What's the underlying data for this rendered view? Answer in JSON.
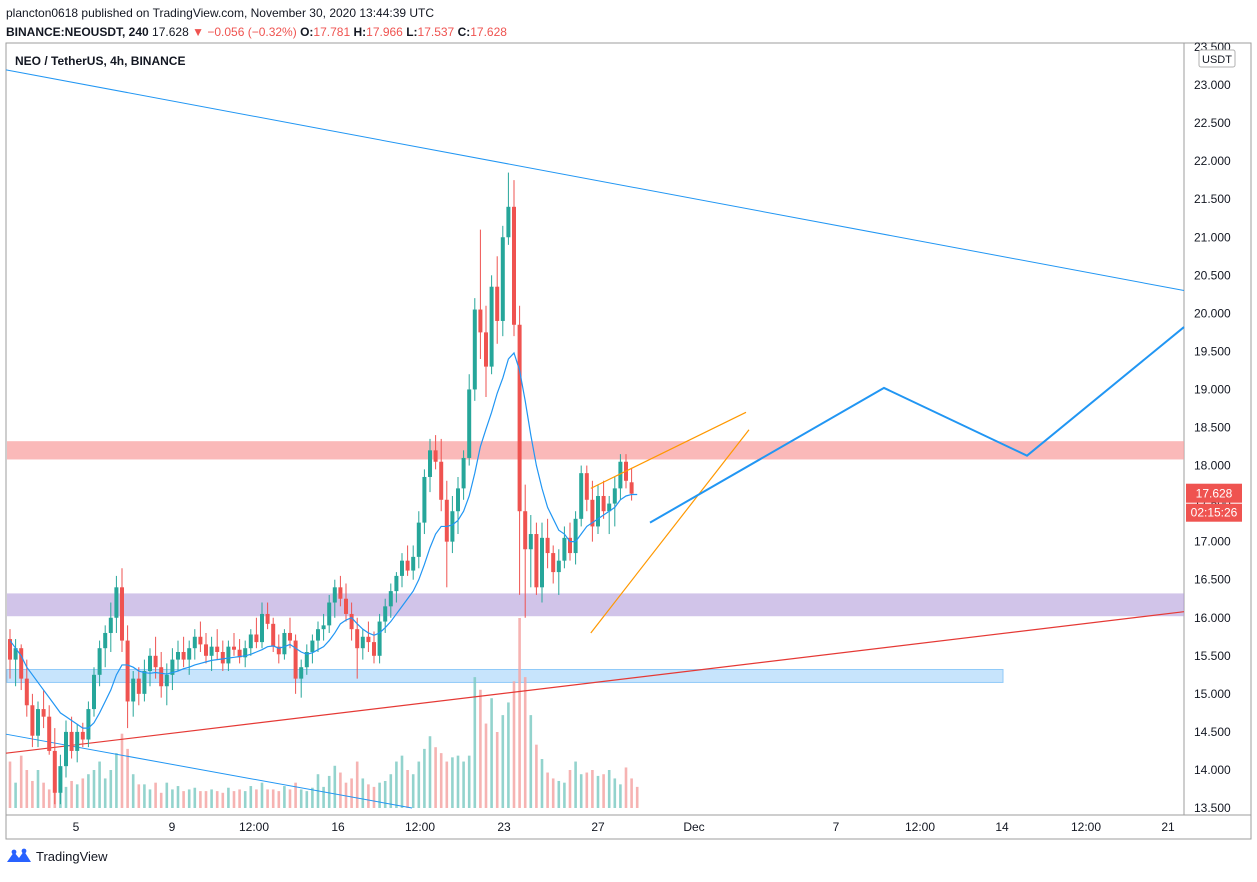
{
  "header": {
    "published": "plancton0618 published on TradingView.com, November 30, 2020 13:44:39 UTC",
    "symbol": "BINANCE:NEOUSDT, 240",
    "last": "17.628",
    "change_arrow": "▼",
    "change": "−0.056 (−0.32%)",
    "o_label": "O:",
    "o_value": "17.781",
    "h_label": "H:",
    "h_value": "17.966",
    "l_label": "L:",
    "l_value": "17.537",
    "c_label": "C:",
    "c_value": "17.628"
  },
  "footer": {
    "brand": "TradingView",
    "logo_icon": "tradingview-logo-icon"
  },
  "chart_data": {
    "type": "candlestick",
    "title": "NEO / TetherUS, 4h, BINANCE",
    "currency": "USDT",
    "ylim": [
      13.5,
      23.5
    ],
    "y_ticks": [
      "23.500",
      "23.000",
      "22.500",
      "22.000",
      "21.500",
      "21.000",
      "20.500",
      "20.000",
      "19.500",
      "19.000",
      "18.500",
      "18.000",
      "17.500",
      "17.000",
      "16.500",
      "16.000",
      "15.500",
      "15.000",
      "14.500",
      "14.000",
      "13.500"
    ],
    "x_ticks": [
      "5",
      "9",
      "12:00",
      "16",
      "12:00",
      "23",
      "27",
      "Dec",
      "7",
      "12:00",
      "14",
      "12:00",
      "21"
    ],
    "last_price": "17.628",
    "countdown": "02:15:26",
    "colors": {
      "up": "#26a69a",
      "down": "#ef5350",
      "ma": "#2196f3",
      "projection": "#2196f3",
      "wedge": "#ff9800",
      "red_line": "#e53935"
    },
    "zones": [
      {
        "name": "resistance-zone",
        "low": 18.08,
        "high": 18.32,
        "color": "#f8a1a1",
        "opacity": 0.75,
        "end": "right"
      },
      {
        "name": "support-zone",
        "low": 16.02,
        "high": 16.32,
        "color": "#b39ddb",
        "opacity": 0.6,
        "end": "right"
      },
      {
        "name": "lower-zone",
        "low": 15.15,
        "high": 15.32,
        "color": "#90caf9",
        "opacity": 0.5,
        "end": "mid"
      }
    ],
    "candles": [
      [
        15.72,
        15.85,
        15.2,
        15.45
      ],
      [
        15.45,
        15.72,
        15.1,
        15.6
      ],
      [
        15.6,
        15.65,
        15.05,
        15.2
      ],
      [
        15.2,
        15.45,
        14.7,
        14.85
      ],
      [
        14.85,
        15.0,
        14.3,
        14.45
      ],
      [
        14.45,
        14.9,
        14.3,
        14.8
      ],
      [
        14.8,
        15.05,
        14.55,
        14.7
      ],
      [
        14.7,
        14.85,
        14.2,
        14.25
      ],
      [
        14.25,
        14.55,
        13.55,
        13.7
      ],
      [
        13.7,
        14.2,
        13.55,
        14.05
      ],
      [
        14.05,
        14.65,
        13.9,
        14.5
      ],
      [
        14.5,
        14.7,
        14.15,
        14.25
      ],
      [
        14.25,
        14.6,
        14.1,
        14.5
      ],
      [
        14.5,
        14.62,
        14.3,
        14.4
      ],
      [
        14.4,
        14.9,
        14.3,
        14.8
      ],
      [
        14.8,
        15.35,
        14.7,
        15.25
      ],
      [
        15.25,
        15.7,
        15.1,
        15.6
      ],
      [
        15.6,
        15.9,
        15.35,
        15.8
      ],
      [
        15.8,
        16.2,
        15.55,
        16.0
      ],
      [
        16.0,
        16.55,
        15.8,
        16.4
      ],
      [
        16.4,
        16.65,
        15.55,
        15.7
      ],
      [
        15.7,
        15.9,
        14.55,
        14.9
      ],
      [
        14.9,
        15.3,
        14.7,
        15.2
      ],
      [
        15.2,
        15.35,
        14.85,
        15.0
      ],
      [
        15.0,
        15.45,
        14.9,
        15.3
      ],
      [
        15.3,
        15.6,
        15.1,
        15.5
      ],
      [
        15.5,
        15.75,
        15.2,
        15.35
      ],
      [
        15.35,
        15.55,
        14.95,
        15.1
      ],
      [
        15.1,
        15.4,
        14.85,
        15.25
      ],
      [
        15.25,
        15.6,
        15.05,
        15.45
      ],
      [
        15.45,
        15.7,
        15.3,
        15.55
      ],
      [
        15.55,
        15.75,
        15.35,
        15.45
      ],
      [
        15.45,
        15.7,
        15.25,
        15.6
      ],
      [
        15.6,
        15.85,
        15.45,
        15.75
      ],
      [
        15.75,
        15.95,
        15.55,
        15.65
      ],
      [
        15.65,
        15.8,
        15.4,
        15.5
      ],
      [
        15.5,
        15.75,
        15.3,
        15.62
      ],
      [
        15.62,
        15.85,
        15.45,
        15.55
      ],
      [
        15.55,
        15.7,
        15.3,
        15.4
      ],
      [
        15.4,
        15.7,
        15.3,
        15.62
      ],
      [
        15.62,
        15.8,
        15.5,
        15.58
      ],
      [
        15.58,
        15.72,
        15.4,
        15.48
      ],
      [
        15.48,
        15.7,
        15.35,
        15.6
      ],
      [
        15.6,
        15.85,
        15.5,
        15.78
      ],
      [
        15.78,
        16.0,
        15.6,
        15.68
      ],
      [
        15.68,
        16.2,
        15.6,
        16.05
      ],
      [
        16.05,
        16.2,
        15.85,
        15.92
      ],
      [
        15.92,
        16.0,
        15.55,
        15.62
      ],
      [
        15.62,
        15.78,
        15.4,
        15.52
      ],
      [
        15.52,
        15.85,
        15.45,
        15.8
      ],
      [
        15.8,
        16.0,
        15.6,
        15.7
      ],
      [
        15.7,
        15.78,
        15.0,
        15.2
      ],
      [
        15.2,
        15.45,
        14.95,
        15.35
      ],
      [
        15.35,
        15.65,
        15.25,
        15.55
      ],
      [
        15.55,
        15.78,
        15.4,
        15.7
      ],
      [
        15.7,
        15.95,
        15.55,
        15.85
      ],
      [
        15.85,
        16.05,
        15.7,
        15.9
      ],
      [
        15.9,
        16.3,
        15.8,
        16.2
      ],
      [
        16.2,
        16.5,
        16.0,
        16.4
      ],
      [
        16.4,
        16.55,
        16.15,
        16.25
      ],
      [
        16.25,
        16.45,
        15.95,
        16.05
      ],
      [
        16.05,
        16.2,
        15.7,
        15.85
      ],
      [
        15.85,
        16.0,
        15.2,
        15.6
      ],
      [
        15.6,
        15.85,
        15.45,
        15.75
      ],
      [
        15.75,
        15.95,
        15.55,
        15.68
      ],
      [
        15.68,
        15.82,
        15.4,
        15.5
      ],
      [
        15.5,
        16.05,
        15.4,
        15.95
      ],
      [
        15.95,
        16.25,
        15.8,
        16.15
      ],
      [
        16.15,
        16.45,
        16.0,
        16.35
      ],
      [
        16.35,
        16.6,
        16.2,
        16.55
      ],
      [
        16.55,
        16.85,
        16.4,
        16.75
      ],
      [
        16.75,
        16.95,
        16.55,
        16.62
      ],
      [
        16.62,
        16.95,
        16.5,
        16.8
      ],
      [
        16.8,
        17.4,
        16.65,
        17.25
      ],
      [
        17.25,
        17.95,
        17.1,
        17.85
      ],
      [
        17.85,
        18.35,
        17.65,
        18.2
      ],
      [
        18.2,
        18.4,
        17.95,
        18.05
      ],
      [
        18.05,
        18.35,
        17.4,
        17.55
      ],
      [
        17.55,
        17.8,
        16.4,
        17.0
      ],
      [
        17.0,
        17.6,
        16.85,
        17.4
      ],
      [
        17.4,
        17.85,
        17.1,
        17.7
      ],
      [
        17.7,
        18.2,
        17.55,
        18.1
      ],
      [
        18.1,
        19.2,
        18.0,
        19.0
      ],
      [
        19.0,
        20.2,
        18.85,
        20.05
      ],
      [
        20.05,
        21.1,
        19.4,
        19.75
      ],
      [
        19.75,
        20.1,
        18.9,
        19.3
      ],
      [
        19.3,
        20.5,
        19.2,
        20.35
      ],
      [
        20.35,
        20.75,
        19.6,
        19.9
      ],
      [
        19.9,
        21.15,
        19.7,
        21.0
      ],
      [
        21.0,
        21.85,
        20.9,
        21.4
      ],
      [
        21.4,
        21.75,
        19.7,
        19.85
      ],
      [
        19.85,
        20.1,
        16.3,
        17.4
      ],
      [
        17.4,
        17.75,
        16.0,
        16.9
      ],
      [
        16.9,
        17.35,
        16.4,
        17.1
      ],
      [
        17.1,
        17.25,
        16.3,
        16.4
      ],
      [
        16.4,
        17.25,
        16.2,
        17.05
      ],
      [
        17.05,
        17.3,
        16.65,
        16.85
      ],
      [
        16.85,
        16.95,
        16.45,
        16.6
      ],
      [
        16.6,
        16.9,
        16.3,
        16.75
      ],
      [
        16.75,
        17.2,
        16.65,
        17.05
      ],
      [
        17.05,
        17.25,
        16.75,
        16.85
      ],
      [
        16.85,
        17.4,
        16.7,
        17.3
      ],
      [
        17.3,
        18.0,
        17.2,
        17.9
      ],
      [
        17.9,
        18.0,
        17.4,
        17.55
      ],
      [
        17.55,
        17.8,
        17.0,
        17.2
      ],
      [
        17.2,
        17.75,
        17.1,
        17.6
      ],
      [
        17.6,
        17.8,
        17.3,
        17.4
      ],
      [
        17.4,
        17.6,
        17.1,
        17.5
      ],
      [
        17.5,
        17.85,
        17.2,
        17.7
      ],
      [
        17.7,
        18.15,
        17.55,
        18.05
      ],
      [
        18.05,
        18.15,
        17.7,
        17.8
      ],
      [
        17.78,
        17.97,
        17.54,
        17.63
      ]
    ],
    "volume": [
      0.55,
      0.3,
      0.62,
      0.45,
      0.32,
      0.45,
      0.3,
      0.22,
      0.6,
      0.4,
      0.25,
      0.32,
      0.28,
      0.35,
      0.4,
      0.45,
      0.55,
      0.35,
      0.45,
      0.65,
      0.88,
      0.7,
      0.4,
      0.28,
      0.28,
      0.22,
      0.3,
      0.18,
      0.3,
      0.22,
      0.26,
      0.2,
      0.22,
      0.24,
      0.2,
      0.2,
      0.22,
      0.2,
      0.18,
      0.24,
      0.2,
      0.22,
      0.2,
      0.26,
      0.22,
      0.3,
      0.22,
      0.22,
      0.2,
      0.26,
      0.22,
      0.3,
      0.22,
      0.2,
      0.24,
      0.4,
      0.25,
      0.38,
      0.5,
      0.42,
      0.3,
      0.35,
      0.55,
      0.35,
      0.28,
      0.25,
      0.3,
      0.32,
      0.4,
      0.55,
      0.62,
      0.45,
      0.4,
      0.55,
      0.7,
      0.85,
      0.72,
      0.65,
      0.55,
      0.6,
      0.62,
      0.55,
      0.62,
      1.55,
      1.4,
      1.0,
      1.3,
      0.9,
      1.1,
      1.25,
      1.5,
      2.25,
      1.55,
      1.1,
      0.75,
      0.58,
      0.42,
      0.35,
      0.32,
      0.3,
      0.45,
      0.55,
      0.4,
      0.42,
      0.45,
      0.38,
      0.4,
      0.45,
      0.35,
      0.28,
      0.48,
      0.35,
      0.25
    ],
    "ma_values": [
      15.7,
      15.6,
      15.5,
      15.35,
      15.25,
      15.15,
      15.05,
      14.95,
      14.85,
      14.75,
      14.7,
      14.65,
      14.6,
      14.55,
      14.55,
      14.62,
      14.75,
      14.9,
      15.05,
      15.25,
      15.38,
      15.38,
      15.35,
      15.3,
      15.28,
      15.27,
      15.28,
      15.27,
      15.26,
      15.28,
      15.3,
      15.33,
      15.35,
      15.38,
      15.4,
      15.42,
      15.44,
      15.45,
      15.46,
      15.47,
      15.48,
      15.49,
      15.5,
      15.52,
      15.55,
      15.58,
      15.62,
      15.63,
      15.6,
      15.62,
      15.65,
      15.6,
      15.55,
      15.52,
      15.54,
      15.58,
      15.62,
      15.7,
      15.8,
      15.92,
      15.97,
      16.0,
      15.92,
      15.85,
      15.8,
      15.77,
      15.8,
      15.87,
      15.95,
      16.05,
      16.15,
      16.25,
      16.35,
      16.5,
      16.7,
      16.92,
      17.1,
      17.2,
      17.2,
      17.22,
      17.28,
      17.4,
      17.6,
      17.9,
      18.25,
      18.48,
      18.7,
      18.95,
      19.15,
      19.4,
      19.48,
      19.25,
      18.85,
      18.4,
      18.0,
      17.7,
      17.45,
      17.3,
      17.15,
      17.1,
      17.0,
      17.0,
      17.1,
      17.2,
      17.25,
      17.3,
      17.35,
      17.4,
      17.45,
      17.55,
      17.6,
      17.62,
      17.62
    ],
    "lines": {
      "upper_trend": {
        "from": [
          "x0",
          23.2
        ],
        "to": [
          "right",
          20.3
        ]
      },
      "lower_trend": {
        "from": [
          "x0",
          14.22
        ],
        "to": [
          "right",
          16.08
        ]
      },
      "bottom_trend": {
        "from": [
          "x0",
          14.47
        ],
        "to": [
          "x-end",
          13.5
        ]
      },
      "projection": [
        [
          17.25,
          "now"
        ],
        [
          19.02,
          "peak"
        ],
        [
          18.13,
          "dip"
        ],
        [
          19.82,
          "right"
        ]
      ],
      "wedge_upper": "from candle 95 high to right",
      "wedge_lower": "from candle 95 low up to apex"
    }
  }
}
